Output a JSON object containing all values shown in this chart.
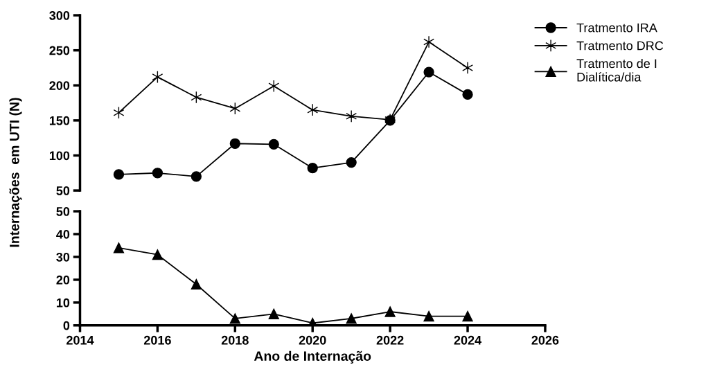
{
  "chart_data": [
    {
      "type": "line",
      "ylabel": "Internações  em UTI (N)",
      "x": [
        2015,
        2016,
        2017,
        2018,
        2019,
        2020,
        2021,
        2022,
        2023,
        2024
      ],
      "xlim": [
        2014,
        2026
      ],
      "ylim": [
        50,
        300
      ],
      "yticks": [
        50,
        100,
        150,
        200,
        250,
        300
      ],
      "tick_labels": "y",
      "grid": false,
      "legend": "top right",
      "series": [
        {
          "name": "Tratmento IRA",
          "color": "#000000",
          "marker": "circle",
          "values": [
            73,
            75,
            70,
            117,
            116,
            82,
            90,
            150,
            219,
            187
          ]
        },
        {
          "name": "Tratmento DRC",
          "color": "#000000",
          "marker": "cross",
          "values": [
            161,
            212,
            183,
            167,
            199,
            165,
            156,
            151,
            262,
            225
          ]
        }
      ]
    },
    {
      "type": "line",
      "xlabel": "Ano de Internação",
      "x": [
        2015,
        2016,
        2017,
        2018,
        2019,
        2020,
        2021,
        2022,
        2023,
        2024
      ],
      "xlim": [
        2014,
        2026
      ],
      "xticks": [
        2014,
        2016,
        2018,
        2020,
        2022,
        2024,
        2026
      ],
      "ylim": [
        0,
        50
      ],
      "yticks": [
        0,
        10,
        20,
        30,
        40,
        50
      ],
      "grid": false,
      "legend": "top right",
      "series": [
        {
          "name": "Tratmento de I\nDialítica/dia",
          "color": "#000000",
          "marker": "triangle",
          "values": [
            34,
            31,
            18,
            3,
            5,
            1,
            3,
            6,
            4,
            4
          ]
        }
      ]
    }
  ]
}
